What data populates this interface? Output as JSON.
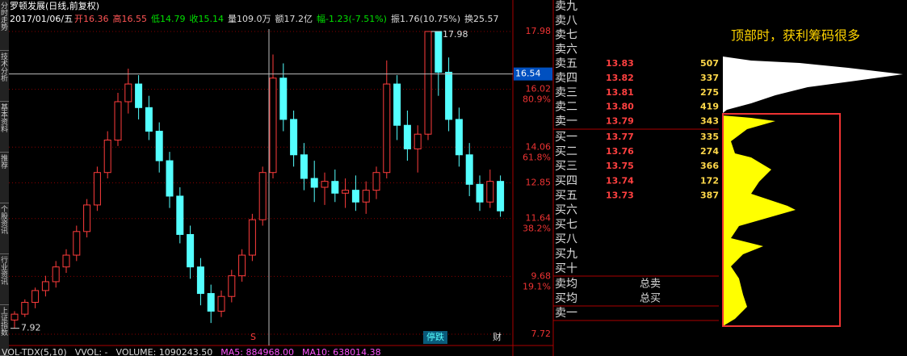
{
  "sidebar_tabs": [
    "分时走势",
    "技术分析",
    "基本资料",
    "推荐",
    "个股资讯",
    "行业资讯",
    "上证指数"
  ],
  "header": {
    "title": "罗顿发展(日线,前复权)",
    "date": "2017/01/06/五",
    "fields": [
      {
        "text": "开16.36",
        "color": "#ff5555"
      },
      {
        "text": "高16.55",
        "color": "#ff5555"
      },
      {
        "text": "低14.79",
        "color": "#00e000"
      },
      {
        "text": "收15.14",
        "color": "#00e000"
      },
      {
        "text": "量109.0万",
        "color": "#dddddd"
      },
      {
        "text": "额17.2亿",
        "color": "#dddddd"
      },
      {
        "text": "幅-1.23(-7.51%)",
        "color": "#00e000"
      },
      {
        "text": "振1.76(10.75%)",
        "color": "#dddddd"
      },
      {
        "text": "换25.57",
        "color": "#dddddd"
      }
    ]
  },
  "price_chart": {
    "ylim": [
      7.72,
      17.98
    ],
    "yticks": [
      17.98,
      16.02,
      14.06,
      12.85,
      11.64,
      9.68,
      7.72
    ],
    "fib_labels": [
      {
        "value": 16.02,
        "label": "80.9%"
      },
      {
        "value": 14.06,
        "label": "61.8%"
      },
      {
        "value": 11.64,
        "label": "38.2%"
      },
      {
        "value": 9.68,
        "label": "19.1%"
      }
    ],
    "cursor_price": 16.54,
    "high_mark": 17.98,
    "low_mark": 7.92,
    "candles": [
      [
        8.2,
        8.5,
        7.92,
        8.4
      ],
      [
        8.4,
        8.9,
        8.3,
        8.8
      ],
      [
        8.8,
        9.3,
        8.6,
        9.2
      ],
      [
        9.2,
        9.7,
        9.0,
        9.5
      ],
      [
        9.5,
        10.2,
        9.3,
        10.0
      ],
      [
        10.0,
        10.6,
        9.8,
        10.4
      ],
      [
        10.4,
        11.4,
        10.2,
        11.2
      ],
      [
        11.2,
        12.3,
        11.0,
        12.1
      ],
      [
        12.1,
        13.4,
        11.9,
        13.2
      ],
      [
        13.2,
        14.6,
        13.0,
        14.3
      ],
      [
        14.3,
        15.9,
        14.1,
        15.6
      ],
      [
        15.6,
        16.72,
        15.2,
        16.2
      ],
      [
        16.2,
        16.5,
        15.0,
        15.4
      ],
      [
        15.4,
        15.8,
        14.3,
        14.6
      ],
      [
        14.6,
        14.9,
        13.2,
        13.6
      ],
      [
        13.6,
        13.9,
        12.0,
        12.4
      ],
      [
        12.4,
        12.7,
        10.8,
        11.1
      ],
      [
        11.1,
        11.4,
        9.6,
        10.0
      ],
      [
        10.0,
        10.3,
        8.7,
        9.1
      ],
      [
        9.1,
        9.4,
        8.1,
        8.5
      ],
      [
        8.5,
        9.2,
        8.3,
        9.0
      ],
      [
        9.0,
        9.9,
        8.8,
        9.7
      ],
      [
        9.7,
        10.6,
        9.5,
        10.4
      ],
      [
        10.4,
        11.8,
        10.2,
        11.6
      ],
      [
        11.6,
        13.4,
        11.4,
        13.2
      ],
      [
        13.2,
        17.2,
        13.0,
        16.4
      ],
      [
        16.4,
        16.9,
        14.6,
        15.0
      ],
      [
        15.0,
        15.3,
        13.4,
        13.8
      ],
      [
        13.8,
        14.2,
        12.6,
        13.0
      ],
      [
        13.0,
        13.6,
        12.2,
        12.7
      ],
      [
        12.7,
        13.2,
        12.1,
        12.9
      ],
      [
        12.9,
        13.3,
        12.2,
        12.5
      ],
      [
        12.5,
        13.0,
        12.0,
        12.6
      ],
      [
        12.6,
        13.1,
        11.9,
        12.2
      ],
      [
        12.2,
        12.9,
        11.8,
        12.6
      ],
      [
        12.6,
        13.4,
        12.3,
        13.2
      ],
      [
        13.2,
        17.0,
        13.0,
        16.2
      ],
      [
        16.2,
        16.5,
        14.3,
        14.8
      ],
      [
        14.8,
        15.3,
        13.6,
        14.0
      ],
      [
        14.0,
        14.8,
        13.2,
        14.5
      ],
      [
        14.5,
        17.98,
        14.3,
        17.98
      ],
      [
        17.98,
        17.98,
        15.8,
        16.6
      ],
      [
        16.6,
        17.1,
        14.6,
        15.0
      ],
      [
        15.0,
        15.4,
        13.4,
        13.8
      ],
      [
        13.8,
        14.2,
        12.4,
        12.8
      ],
      [
        12.8,
        13.1,
        11.9,
        12.2
      ],
      [
        12.2,
        13.3,
        12.0,
        12.9
      ],
      [
        12.9,
        13.1,
        11.7,
        11.9
      ]
    ],
    "tags": [
      "S",
      "停跌",
      "财"
    ]
  },
  "volume_line": [
    "VOL-TDX(5,10)",
    "VVOL: -",
    "VOLUME: 1090243.50",
    "MA5: 884968.00",
    "MA10: 638014.38"
  ],
  "order_book": {
    "sell": [
      {
        "label": "卖九"
      },
      {
        "label": "卖八"
      },
      {
        "label": "卖七"
      },
      {
        "label": "卖六"
      },
      {
        "label": "卖五",
        "price": "13.83",
        "volume": "507"
      },
      {
        "label": "卖四",
        "price": "13.82",
        "volume": "337"
      },
      {
        "label": "卖三",
        "price": "13.81",
        "volume": "275"
      },
      {
        "label": "卖二",
        "price": "13.80",
        "volume": "419"
      },
      {
        "label": "卖一",
        "price": "13.79",
        "volume": "343"
      }
    ],
    "buy": [
      {
        "label": "买一",
        "price": "13.77",
        "volume": "335"
      },
      {
        "label": "买二",
        "price": "13.76",
        "volume": "274"
      },
      {
        "label": "买三",
        "price": "13.75",
        "volume": "366"
      },
      {
        "label": "买四",
        "price": "13.74",
        "volume": "172"
      },
      {
        "label": "买五",
        "price": "13.73",
        "volume": "387"
      },
      {
        "label": "买六"
      },
      {
        "label": "买七"
      },
      {
        "label": "买八"
      },
      {
        "label": "买九"
      },
      {
        "label": "买十"
      }
    ],
    "summary": [
      {
        "label": "卖均",
        "note": "总卖"
      },
      {
        "label": "买均",
        "note": "总买"
      },
      {
        "label": "卖一"
      }
    ]
  },
  "chip_note": "顶部时，获利筹码很多"
}
